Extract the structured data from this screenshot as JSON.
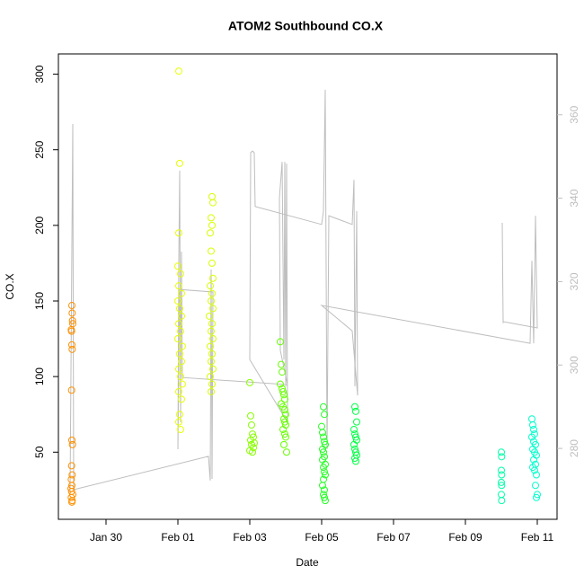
{
  "chart_data": {
    "type": "scatter",
    "title": "ATOM2 Southbound CO.X",
    "x_label": "Date",
    "y_label": "CO.X",
    "xlim": [
      "Jan 28 16:12",
      "Feb 11 13:12"
    ],
    "xticks": [
      "Jan 30",
      "Feb 01",
      "Feb 03",
      "Feb 05",
      "Feb 07",
      "Feb 09",
      "Feb 11"
    ],
    "ylim": [
      5.6,
      313.4
    ],
    "yticks": [
      50,
      100,
      150,
      200,
      250,
      300
    ],
    "y2lim": [
      263,
      374.6
    ],
    "y2ticks": [
      280,
      300,
      320,
      340,
      360
    ],
    "series": [
      {
        "color": "#ff9000",
        "values": [
          147,
          142,
          137,
          135,
          131,
          130,
          121,
          118,
          91,
          58,
          55,
          41,
          35,
          32,
          28,
          26,
          24,
          22,
          20,
          18,
          17
        ],
        "x": [
          "Jan 29 01:12",
          "Jan 29 01:24",
          "Jan 29 01:36",
          "Jan 29 01:48",
          "Jan 29 00:48",
          "Jan 29 01:00",
          "Jan 29 01:12",
          "Jan 29 01:24",
          "Jan 29 01:00",
          "Jan 29 01:12",
          "Jan 29 01:36",
          "Jan 29 01:00",
          "Jan 29 01:24",
          "Jan 29 00:48",
          "Jan 29 01:12",
          "Jan 29 00:36",
          "Jan 29 01:00",
          "Jan 29 01:48",
          "Jan 29 00:48",
          "Jan 29 01:24",
          "Jan 29 01:12"
        ]
      },
      {
        "color": "#e8ff00",
        "values": [
          302,
          241,
          195,
          173,
          168,
          160,
          155,
          150,
          145,
          140,
          135,
          130,
          125,
          120,
          115,
          110,
          105,
          100,
          95,
          90,
          85,
          75,
          70,
          65
        ],
        "x": [
          "Feb 01 00:36",
          "Feb 01 01:12",
          "Feb 01 00:36",
          "Feb 01 00:00",
          "Feb 01 01:48",
          "Feb 01 00:36",
          "Feb 01 02:24",
          "Feb 01 00:00",
          "Feb 01 01:12",
          "Feb 01 02:24",
          "Feb 01 00:36",
          "Feb 01 01:48",
          "Feb 01 00:00",
          "Feb 01 03:00",
          "Feb 01 01:12",
          "Feb 01 02:24",
          "Feb 01 00:36",
          "Feb 01 01:48",
          "Feb 01 03:00",
          "Feb 01 00:36",
          "Feb 01 02:24",
          "Feb 01 01:12",
          "Feb 01 00:36",
          "Feb 01 01:48"
        ]
      },
      {
        "color": "#d8ff00",
        "values": [
          219,
          215,
          205,
          200,
          195,
          183,
          175,
          165,
          160,
          155,
          150,
          145,
          140,
          135,
          130,
          125,
          120,
          115,
          110,
          105,
          100,
          95,
          90
        ],
        "x": [
          "Feb 01 22:48",
          "Feb 01 23:24",
          "Feb 01 22:12",
          "Feb 01 22:48",
          "Feb 01 21:36",
          "Feb 01 22:12",
          "Feb 01 22:48",
          "Feb 01 23:24",
          "Feb 01 21:36",
          "Feb 01 22:48",
          "Feb 01 22:12",
          "Feb 01 23:24",
          "Feb 01 21:00",
          "Feb 01 22:48",
          "Feb 01 22:12",
          "Feb 01 23:24",
          "Feb 01 21:36",
          "Feb 01 22:48",
          "Feb 01 22:12",
          "Feb 01 23:24",
          "Feb 01 21:36",
          "Feb 01 22:48",
          "Feb 01 22:12"
        ]
      },
      {
        "color": "#88ff00",
        "values": [
          96,
          74,
          68,
          62,
          60,
          58,
          56,
          55,
          53,
          51,
          50
        ],
        "x": [
          "Feb 03 00:00",
          "Feb 03 00:36",
          "Feb 03 01:12",
          "Feb 03 01:48",
          "Feb 03 02:24",
          "Feb 03 00:36",
          "Feb 03 03:00",
          "Feb 03 01:12",
          "Feb 03 02:24",
          "Feb 03 00:00",
          "Feb 03 01:48"
        ]
      },
      {
        "color": "#66ff00",
        "values": [
          123,
          108,
          103,
          95,
          92,
          90,
          88,
          85,
          82,
          80,
          78,
          75,
          72,
          70,
          68,
          65,
          62,
          60,
          55,
          50
        ],
        "x": [
          "Feb 03 20:24",
          "Feb 03 21:00",
          "Feb 03 21:36",
          "Feb 03 20:24",
          "Feb 03 21:36",
          "Feb 03 22:12",
          "Feb 03 22:48",
          "Feb 03 23:24",
          "Feb 03 21:00",
          "Feb 03 22:12",
          "Feb 03 23:24",
          "Feb 04 00:00",
          "Feb 03 22:48",
          "Feb 03 23:24",
          "Feb 04 00:00",
          "Feb 03 22:12",
          "Feb 03 23:24",
          "Feb 04 00:00",
          "Feb 03 22:48",
          "Feb 04 00:36"
        ]
      },
      {
        "color": "#22ff22",
        "values": [
          80,
          75,
          67,
          63,
          60,
          57,
          55,
          52,
          50,
          47,
          45,
          42,
          40,
          37,
          35,
          32,
          28,
          25,
          22,
          20,
          18
        ],
        "x": [
          "Feb 05 01:12",
          "Feb 05 01:48",
          "Feb 05 00:00",
          "Feb 05 00:36",
          "Feb 05 01:12",
          "Feb 05 01:48",
          "Feb 05 02:24",
          "Feb 05 00:36",
          "Feb 05 01:12",
          "Feb 05 01:48",
          "Feb 05 00:36",
          "Feb 05 02:24",
          "Feb 05 01:12",
          "Feb 05 01:48",
          "Feb 05 02:24",
          "Feb 05 01:12",
          "Feb 05 00:36",
          "Feb 05 01:48",
          "Feb 05 01:12",
          "Feb 05 01:48",
          "Feb 05 02:24"
        ]
      },
      {
        "color": "#00ff44",
        "values": [
          80,
          77,
          70,
          65,
          62,
          60,
          58,
          55,
          52,
          50,
          48,
          46,
          44
        ],
        "x": [
          "Feb 05 22:12",
          "Feb 05 22:48",
          "Feb 05 23:24",
          "Feb 05 21:36",
          "Feb 05 22:12",
          "Feb 05 22:48",
          "Feb 05 23:24",
          "Feb 05 21:36",
          "Feb 05 22:12",
          "Feb 05 22:48",
          "Feb 05 23:24",
          "Feb 05 22:12",
          "Feb 05 22:48"
        ]
      },
      {
        "color": "#00ffaa",
        "values": [
          50,
          47,
          38,
          35,
          30,
          28,
          22,
          18
        ],
        "x": [
          "Feb 10 00:00",
          "Feb 10 00:12",
          "Feb 10 00:00",
          "Feb 10 00:12",
          "Feb 10 00:00",
          "Feb 10 00:12",
          "Feb 10 00:00",
          "Feb 10 00:12"
        ]
      },
      {
        "color": "#00ffcc",
        "values": [
          72,
          68,
          65,
          62,
          60,
          57,
          55,
          52,
          50,
          48,
          45,
          42,
          40,
          38,
          35,
          28,
          22,
          20
        ],
        "x": [
          "Feb 10 20:24",
          "Feb 10 21:00",
          "Feb 10 21:36",
          "Feb 10 22:12",
          "Feb 10 20:24",
          "Feb 10 21:36",
          "Feb 10 22:48",
          "Feb 10 21:00",
          "Feb 10 22:12",
          "Feb 10 23:24",
          "Feb 10 21:36",
          "Feb 10 22:48",
          "Feb 10 21:00",
          "Feb 10 22:12",
          "Feb 10 23:24",
          "Feb 10 22:48",
          "Feb 11 00:00",
          "Feb 10 23:24"
        ]
      },
      {
        "type": "line",
        "axis": "y2",
        "color": "#bebebe",
        "values": [
          269.5,
          357.8,
          270.1,
          278.1,
          272.3,
          322.9,
          272.7,
          317.5,
          318.1,
          279.8,
          325.0,
          346.6,
          286.3,
          327.2,
          297.0,
          295.3,
          303.5,
          340.1,
          348.7,
          301.3,
          348.7,
          294.9,
          348.3,
          286.3,
          301.3,
          350.9,
          351.3,
          350.9,
          338.0,
          333.7,
          336.9,
          366.0,
          279.8,
          335.8,
          333.7,
          344.4,
          294.9,
          336.9,
          292.7,
          308.2,
          314.3,
          305.2,
          325.0,
          305.2,
          335.8,
          308.9,
          310.4,
          334.1,
          310.0
        ],
        "x": [
          "Jan 29 00:00",
          "Jan 29 01:48",
          "Jan 29 02:24",
          "Feb 01 20:24",
          "Feb 01 21:36",
          "Feb 01 22:12",
          "Feb 01 22:48",
          "Feb 01 23:24",
          "Feb 01 01:12",
          "Feb 01 00:00",
          "Feb 01 00:36",
          "Feb 01 01:12",
          "Feb 01 01:48",
          "Feb 01 02:24",
          "Feb 01 03:00",
          "Feb 04 01:12",
          "Feb 03 20:24",
          "Feb 03 19:48",
          "Feb 03 21:36",
          "Feb 03 22:48",
          "Feb 03 23:24",
          "Feb 04 00:00",
          "Feb 04 00:36",
          "Feb 04 01:12",
          "Feb 03 00:00",
          "Feb 03 00:36",
          "Feb 03 01:48",
          "Feb 03 03:00",
          "Feb 03 03:36",
          "Feb 05 00:00",
          "Feb 05 01:12",
          "Feb 05 02:24",
          "Feb 05 03:36",
          "Feb 05 04:48",
          "Feb 05 20:24",
          "Feb 05 21:36",
          "Feb 05 22:12",
          "Feb 05 23:24",
          "Feb 06 00:00",
          "Feb 05 20:24",
          "Feb 05 00:00",
          "Feb 10 19:12",
          "Feb 10 20:24",
          "Feb 10 21:36",
          "Feb 10 22:48",
          "Feb 11 00:00",
          "Feb 10 01:12",
          "Feb 10 00:36",
          "Feb 10 01:12"
        ]
      }
    ]
  }
}
